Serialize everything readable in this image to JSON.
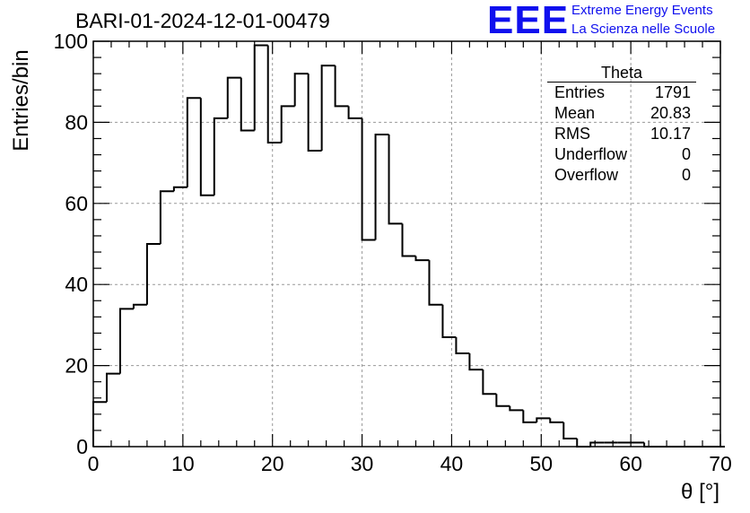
{
  "header": {
    "title": "BARI-01-2024-12-01-00479",
    "logo_text": "EEE",
    "logo_line1": "Extreme Energy Events",
    "logo_line2": "La Scienza nelle Scuole",
    "logo_color": "#1010ee"
  },
  "stats": {
    "title": "Theta",
    "rows": [
      {
        "label": "Entries",
        "value": "1791"
      },
      {
        "label": "Mean",
        "value": "20.83"
      },
      {
        "label": "RMS",
        "value": "10.17"
      },
      {
        "label": "Underflow",
        "value": "0"
      },
      {
        "label": "Overflow",
        "value": "0"
      }
    ]
  },
  "chart_data": {
    "type": "bar",
    "style": "step-histogram",
    "title": "BARI-01-2024-12-01-00479",
    "xlabel": "θ [°]",
    "ylabel": "Entries/bin",
    "xlim": [
      0,
      70
    ],
    "ylim": [
      0,
      100
    ],
    "bin_width": 1.5,
    "bin_start": 0,
    "xticks": [
      "0",
      "10",
      "20",
      "30",
      "40",
      "50",
      "60",
      "70"
    ],
    "yticks": [
      "0",
      "20",
      "40",
      "60",
      "80",
      "100"
    ],
    "grid": true,
    "values": [
      11,
      18,
      34,
      35,
      50,
      63,
      64,
      86,
      62,
      81,
      91,
      78,
      99,
      75,
      84,
      92,
      73,
      94,
      84,
      81,
      51,
      77,
      55,
      47,
      46,
      35,
      27,
      23,
      19,
      13,
      10,
      9,
      6,
      7,
      6,
      2,
      0,
      1,
      1,
      1,
      1,
      0,
      0,
      0,
      0,
      0,
      0
    ],
    "line_color": "#000000",
    "grid_color": "#999999"
  }
}
